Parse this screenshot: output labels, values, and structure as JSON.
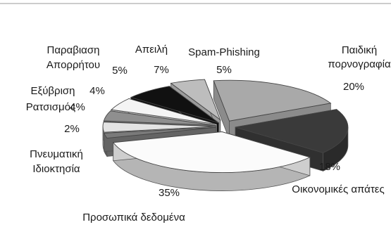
{
  "chart_data": {
    "type": "pie",
    "style": "3d-exploded",
    "legend": "none",
    "slices": [
      {
        "label": "Παιδική πορνογραφία",
        "value": 20,
        "value_label": "20%",
        "color": "#a9a9a9"
      },
      {
        "label": "Οικονομικές απάτες",
        "value": 18,
        "value_label": "18%",
        "color": "#3a3a3a"
      },
      {
        "label": "Προσωπικά δεδομένα",
        "value": 35,
        "value_label": "35%",
        "color": "#fbfbfb"
      },
      {
        "label": "Πνευματική Ιδιοκτησία",
        "value": 2,
        "value_label": "2%",
        "color": "#7a7a7a"
      },
      {
        "label": "Ρατσισμός",
        "value": 4,
        "value_label": "4%",
        "color": "#e3e3e3"
      },
      {
        "label": "Εξύβριση",
        "value": 4,
        "value_label": "4%",
        "color": "#8f8f8f"
      },
      {
        "label": "Παραβίαση Απορρήτου",
        "value": 5,
        "value_label": "5%",
        "color": "#f4f4f4"
      },
      {
        "label": "Απειλή",
        "value": 7,
        "value_label": "7%",
        "color": "#111111"
      },
      {
        "label": "Spam-Phishing",
        "value": 5,
        "value_label": "5%",
        "color": "#bdbdbd"
      }
    ]
  }
}
